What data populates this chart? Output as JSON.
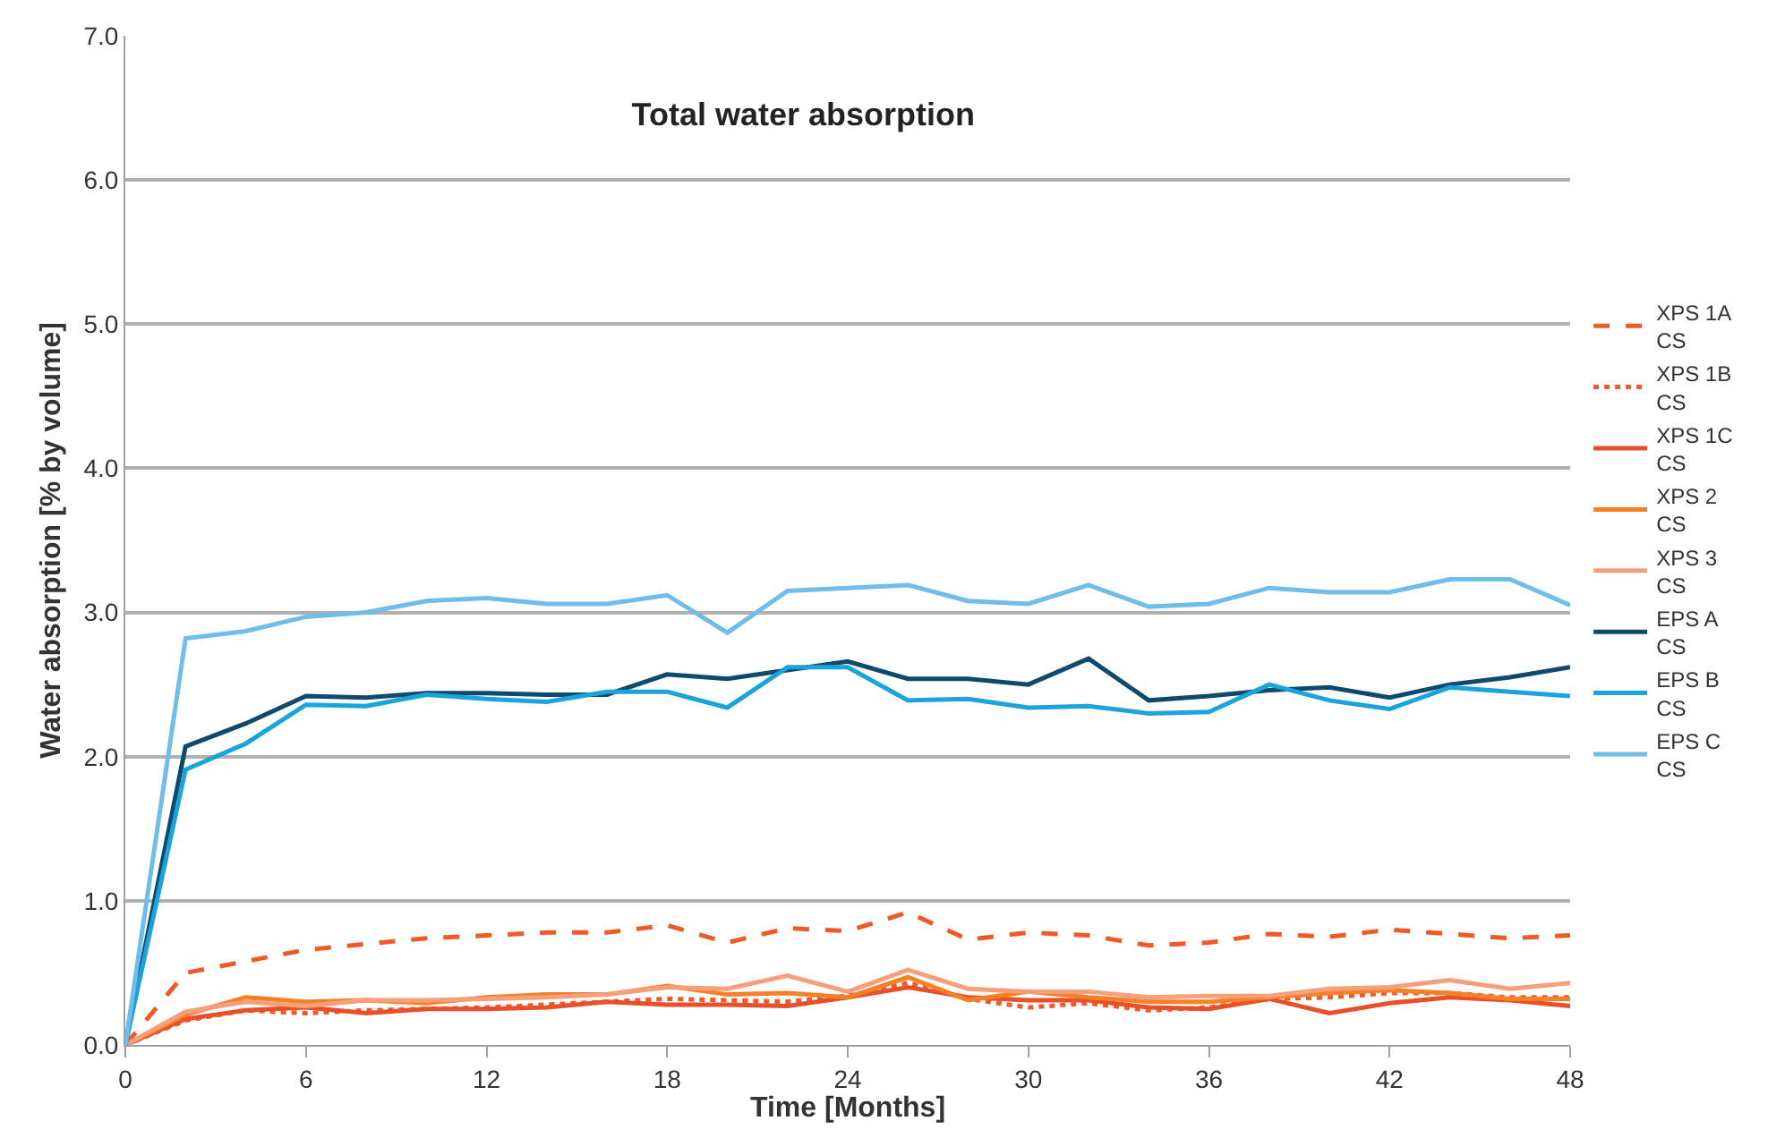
{
  "chart_data": {
    "type": "line",
    "title": "Total water absorption",
    "xlabel": "Time [Months]",
    "ylabel": "Water absorption [% by volume]",
    "x": [
      0,
      2,
      4,
      6,
      8,
      10,
      12,
      14,
      16,
      18,
      20,
      22,
      24,
      26,
      28,
      30,
      32,
      34,
      36,
      38,
      40,
      42,
      44,
      46,
      48
    ],
    "xlim": [
      0,
      48
    ],
    "xticks": [
      0,
      6,
      12,
      18,
      24,
      30,
      36,
      42,
      48
    ],
    "ylim": [
      0,
      7
    ],
    "yticks": [
      {
        "value": 0,
        "label": "0.0"
      },
      {
        "value": 1,
        "label": "1.0"
      },
      {
        "value": 2,
        "label": "2.0"
      },
      {
        "value": 3,
        "label": "3.0"
      },
      {
        "value": 4,
        "label": "4.0"
      },
      {
        "value": 5,
        "label": "5.0"
      },
      {
        "value": 6,
        "label": "6.0"
      },
      {
        "value": 7,
        "label": "7.0"
      }
    ],
    "grid": "y",
    "legend": "right",
    "marker": "none",
    "series": [
      {
        "name": "XPS 1A\nCS",
        "color": "#f05a28",
        "line_style": "dashed",
        "values": [
          0,
          0.5,
          0.58,
          0.66,
          0.7,
          0.74,
          0.76,
          0.78,
          0.78,
          0.83,
          0.71,
          0.81,
          0.79,
          0.92,
          0.73,
          0.78,
          0.76,
          0.69,
          0.71,
          0.77,
          0.75,
          0.8,
          0.77,
          0.74,
          0.76
        ]
      },
      {
        "name": "XPS 1B\nCS",
        "color": "#f05a28",
        "line_style": "dotted",
        "values": [
          0,
          0.17,
          0.24,
          0.22,
          0.24,
          0.25,
          0.26,
          0.28,
          0.3,
          0.32,
          0.31,
          0.3,
          0.34,
          0.43,
          0.32,
          0.26,
          0.29,
          0.24,
          0.26,
          0.32,
          0.33,
          0.36,
          0.36,
          0.33,
          0.33
        ]
      },
      {
        "name": "XPS 1C\nCS",
        "color": "#e8502a",
        "line_style": "solid",
        "values": [
          0,
          0.18,
          0.24,
          0.26,
          0.22,
          0.25,
          0.25,
          0.26,
          0.3,
          0.28,
          0.28,
          0.27,
          0.33,
          0.4,
          0.33,
          0.31,
          0.31,
          0.26,
          0.25,
          0.32,
          0.22,
          0.29,
          0.33,
          0.31,
          0.27
        ]
      },
      {
        "name": "XPS 2\nCS",
        "color": "#f58025",
        "line_style": "solid",
        "values": [
          0,
          0.21,
          0.33,
          0.3,
          0.31,
          0.29,
          0.33,
          0.35,
          0.35,
          0.41,
          0.35,
          0.36,
          0.33,
          0.47,
          0.31,
          0.37,
          0.33,
          0.3,
          0.3,
          0.33,
          0.36,
          0.38,
          0.36,
          0.32,
          0.32
        ]
      },
      {
        "name": "XPS 3\nCS",
        "color": "#f5a07a",
        "line_style": "solid",
        "values": [
          0,
          0.23,
          0.3,
          0.27,
          0.31,
          0.31,
          0.32,
          0.33,
          0.35,
          0.4,
          0.39,
          0.48,
          0.37,
          0.52,
          0.39,
          0.37,
          0.37,
          0.33,
          0.34,
          0.34,
          0.39,
          0.4,
          0.45,
          0.39,
          0.43
        ]
      },
      {
        "name": "EPS A\nCS",
        "color": "#0d4a6e",
        "line_style": "solid",
        "values": [
          0,
          2.07,
          2.23,
          2.42,
          2.41,
          2.44,
          2.44,
          2.43,
          2.43,
          2.57,
          2.54,
          2.6,
          2.66,
          2.54,
          2.54,
          2.5,
          2.68,
          2.39,
          2.42,
          2.46,
          2.48,
          2.41,
          2.5,
          2.55,
          2.62
        ]
      },
      {
        "name": "EPS B\nCS",
        "color": "#1ba3dc",
        "line_style": "solid",
        "values": [
          0,
          1.91,
          2.09,
          2.36,
          2.35,
          2.43,
          2.4,
          2.38,
          2.45,
          2.45,
          2.34,
          2.62,
          2.62,
          2.39,
          2.4,
          2.34,
          2.35,
          2.3,
          2.31,
          2.5,
          2.39,
          2.33,
          2.48,
          2.45,
          2.42
        ]
      },
      {
        "name": "EPS C\nCS",
        "color": "#6fbde8",
        "line_style": "solid",
        "values": [
          0,
          2.82,
          2.87,
          2.97,
          3.0,
          3.08,
          3.1,
          3.06,
          3.06,
          3.12,
          2.86,
          3.15,
          3.17,
          3.19,
          3.08,
          3.06,
          3.19,
          3.04,
          3.06,
          3.17,
          3.14,
          3.14,
          3.23,
          3.23,
          3.05
        ]
      }
    ]
  }
}
